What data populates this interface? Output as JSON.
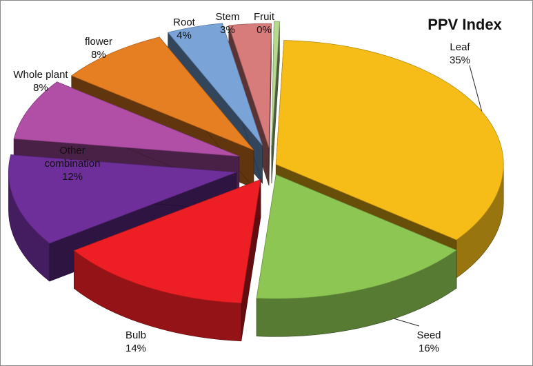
{
  "chart_data": {
    "type": "pie",
    "style": "3d-exploded",
    "title": "PPV Index",
    "legend": "none",
    "slices": [
      {
        "label": "Leaf",
        "value": 35,
        "display": "35%",
        "color": "#F6BC18"
      },
      {
        "label": "Seed",
        "value": 16,
        "display": "16%",
        "color": "#8DC653"
      },
      {
        "label": "Bulb",
        "value": 14,
        "display": "14%",
        "color": "#EE1E25"
      },
      {
        "label": "Other combination",
        "value": 12,
        "display": "12%",
        "color": "#6E2F9B"
      },
      {
        "label": "Whole plant",
        "value": 8,
        "display": "8%",
        "color": "#B14FA6"
      },
      {
        "label": "flower",
        "value": 8,
        "display": "8%",
        "color": "#E67E22"
      },
      {
        "label": "Root",
        "value": 4,
        "display": "4%",
        "color": "#7AA4D8"
      },
      {
        "label": "Stem",
        "value": 3,
        "display": "3%",
        "color": "#D77B7B"
      },
      {
        "label": "Fruit",
        "value": 0,
        "display": "0%",
        "color": "#B5D98E"
      }
    ]
  }
}
